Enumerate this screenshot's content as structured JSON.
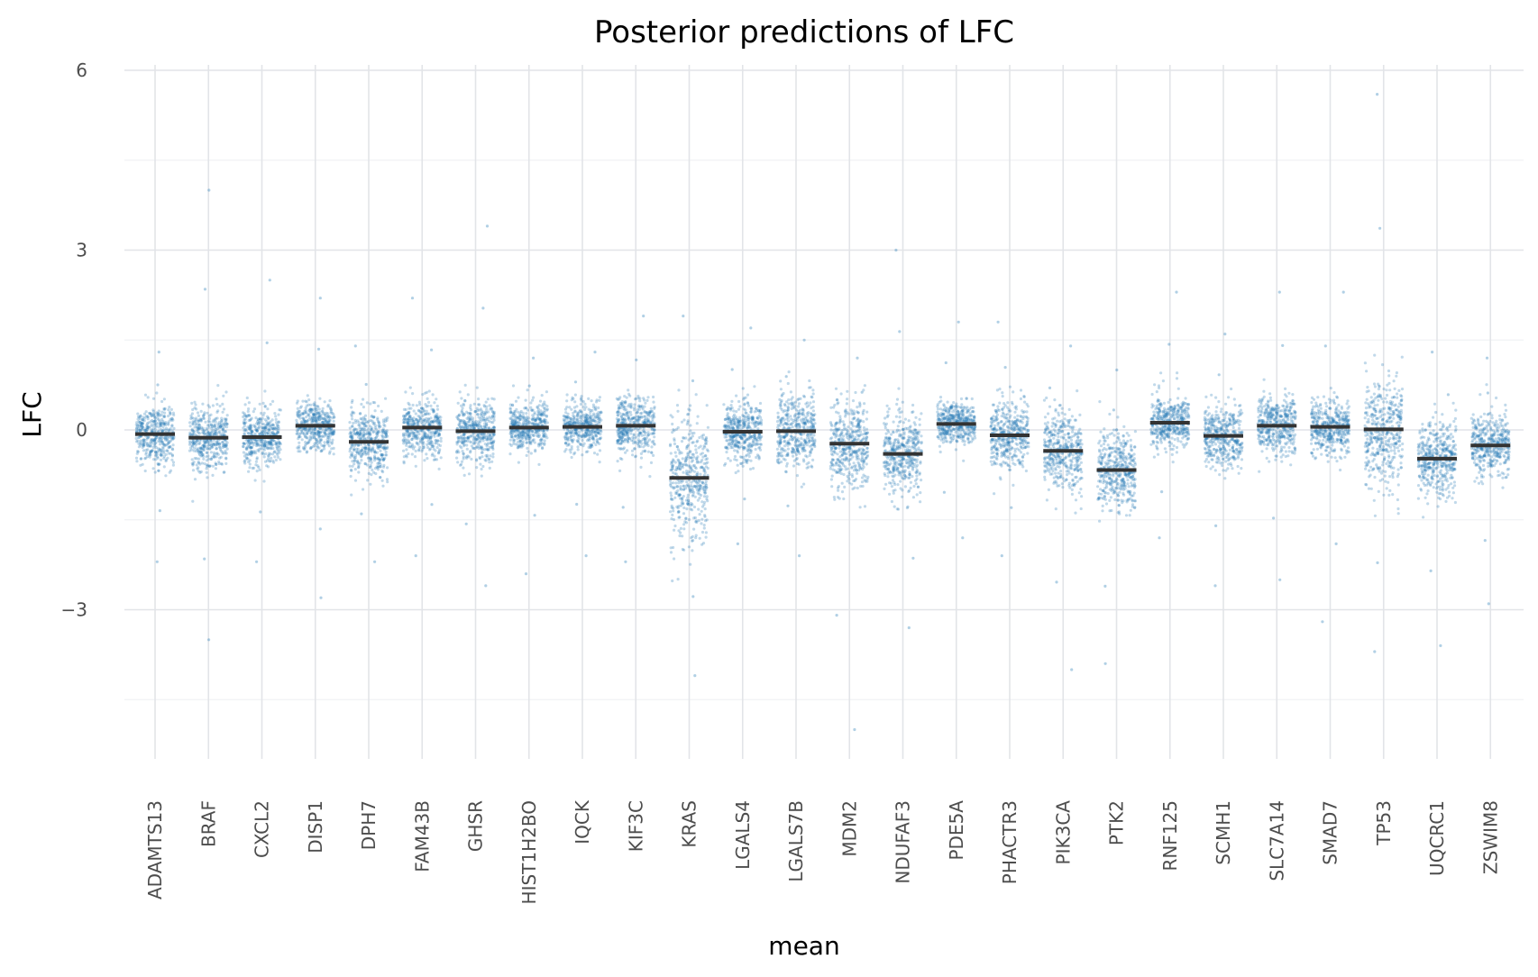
{
  "chart_data": {
    "type": "scatter",
    "title": "Posterior predictions of LFC",
    "xlabel": "mean",
    "ylabel": "LFC",
    "ylim": [
      -5.1,
      6.3
    ],
    "yticks": [
      -3,
      0,
      3,
      6
    ],
    "ytick_labels": [
      "−3",
      "0",
      "3",
      "6"
    ],
    "grid": true,
    "point_color": "#1f77b4",
    "mean_color": "#333333",
    "categories": [
      "ADAMTS13",
      "BRAF",
      "CXCL2",
      "DISP1",
      "DPH7",
      "FAM43B",
      "GHSR",
      "HIST1H2BO",
      "IQCK",
      "KIF3C",
      "KRAS",
      "LGALS4",
      "LGALS7B",
      "MDM2",
      "NDUFAF3",
      "PDE5A",
      "PHACTR3",
      "PIK3CA",
      "PTK2",
      "RNF125",
      "SCMH1",
      "SLC7A14",
      "SMAD7",
      "TP53",
      "UQCRC1",
      "ZSWIM8"
    ],
    "means": [
      -0.07,
      -0.13,
      -0.12,
      0.07,
      -0.2,
      0.04,
      -0.02,
      0.04,
      0.05,
      0.07,
      -0.8,
      -0.03,
      -0.02,
      -0.23,
      -0.4,
      0.1,
      -0.09,
      -0.35,
      -0.67,
      0.12,
      -0.1,
      0.07,
      0.05,
      0.01,
      -0.48,
      -0.26
    ],
    "spread_sd": [
      0.45,
      0.5,
      0.45,
      0.38,
      0.5,
      0.42,
      0.5,
      0.35,
      0.38,
      0.45,
      0.95,
      0.45,
      0.55,
      0.65,
      0.6,
      0.35,
      0.5,
      0.6,
      0.6,
      0.4,
      0.45,
      0.45,
      0.42,
      0.85,
      0.55,
      0.48
    ],
    "ymin": [
      -2.2,
      -3.5,
      -2.2,
      -2.8,
      -2.2,
      -2.1,
      -2.6,
      -2.4,
      -2.1,
      -2.2,
      -4.1,
      -1.9,
      -2.1,
      -5.0,
      -3.3,
      -1.8,
      -2.1,
      -4.0,
      -3.9,
      -1.8,
      -2.6,
      -2.5,
      -3.2,
      -3.7,
      -3.6,
      -2.9
    ],
    "ymax": [
      1.3,
      4.0,
      2.5,
      2.2,
      1.4,
      2.2,
      3.4,
      1.2,
      1.3,
      1.9,
      1.9,
      1.7,
      1.5,
      1.2,
      3.0,
      1.8,
      1.8,
      1.4,
      1.0,
      2.3,
      1.6,
      2.3,
      2.3,
      5.6,
      1.3,
      1.2
    ]
  }
}
